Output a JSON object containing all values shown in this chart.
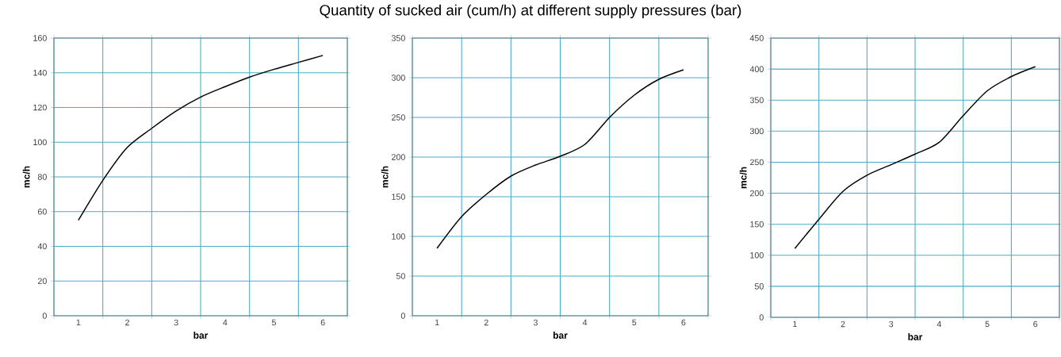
{
  "chart_data": [
    {
      "type": "line",
      "xlabel": "bar",
      "ylabel": "mc/h",
      "x": [
        1,
        1.5,
        2,
        2.5,
        3,
        3.5,
        4,
        4.5,
        5,
        5.5,
        6
      ],
      "series": [
        {
          "color": "#000000",
          "values": [
            55,
            78,
            97,
            108,
            118,
            126,
            132,
            137.5,
            142,
            146,
            150
          ]
        }
      ],
      "xlim": [
        0.5,
        6.5
      ],
      "xticks": [
        {
          "value": 0.5,
          "label": null
        },
        1,
        {
          "value": 1.5,
          "label": null
        },
        2,
        {
          "value": 2.5,
          "label": null
        },
        3,
        {
          "value": 3.5,
          "label": null
        },
        4,
        {
          "value": 4.5,
          "label": null
        },
        5,
        {
          "value": 5.5,
          "label": null
        },
        6,
        {
          "value": 6.5,
          "label": null
        }
      ],
      "ylim": [
        0,
        160
      ],
      "yticks": [
        0,
        20,
        40,
        60,
        80,
        100,
        120,
        140,
        160
      ],
      "grid": true,
      "marker": "none",
      "line_style": "solid"
    },
    {
      "type": "line",
      "title": "Quantity of sucked air (cum/h) at different supply pressures (bar)",
      "xlabel": "bar",
      "ylabel": "mc/h",
      "x": [
        1,
        1.5,
        2,
        2.5,
        3,
        3.5,
        4,
        4.5,
        5,
        5.5,
        6
      ],
      "series": [
        {
          "color": "#000000",
          "values": [
            85,
            125,
            153,
            176,
            190,
            201,
            216,
            250,
            278,
            298,
            310
          ]
        }
      ],
      "xlim": [
        0.5,
        6.5
      ],
      "xticks": [
        {
          "value": 0.5,
          "label": null
        },
        1,
        {
          "value": 1.5,
          "label": null
        },
        2,
        {
          "value": 2.5,
          "label": null
        },
        3,
        {
          "value": 3.5,
          "label": null
        },
        4,
        {
          "value": 4.5,
          "label": null
        },
        5,
        {
          "value": 5.5,
          "label": null
        },
        6,
        {
          "value": 6.5,
          "label": null
        }
      ],
      "ylim": [
        0,
        350
      ],
      "yticks": [
        0,
        50,
        100,
        150,
        200,
        250,
        300,
        350
      ],
      "grid": true,
      "marker": "none",
      "line_style": "solid"
    },
    {
      "type": "line",
      "xlabel": "bar",
      "ylabel": "mc/h",
      "x": [
        1,
        1.5,
        2,
        2.5,
        3,
        3.5,
        4,
        4.5,
        5,
        5.5,
        6
      ],
      "series": [
        {
          "color": "#000000",
          "values": [
            111,
            158,
            203,
            229,
            246,
            263,
            282,
            325,
            365,
            388,
            404
          ]
        }
      ],
      "xlim": [
        0.5,
        6.5
      ],
      "xticks": [
        {
          "value": 0.5,
          "label": null
        },
        1,
        {
          "value": 1.5,
          "label": null
        },
        2,
        {
          "value": 2.5,
          "label": null
        },
        3,
        {
          "value": 3.5,
          "label": null
        },
        4,
        {
          "value": 4.5,
          "label": null
        },
        5,
        {
          "value": 5.5,
          "label": null
        },
        6,
        {
          "value": 6.5,
          "label": null
        }
      ],
      "ylim": [
        0,
        450
      ],
      "yticks": [
        0,
        50,
        100,
        150,
        200,
        250,
        300,
        350,
        400,
        450
      ],
      "grid": true,
      "marker": "none",
      "line_style": "solid"
    }
  ]
}
